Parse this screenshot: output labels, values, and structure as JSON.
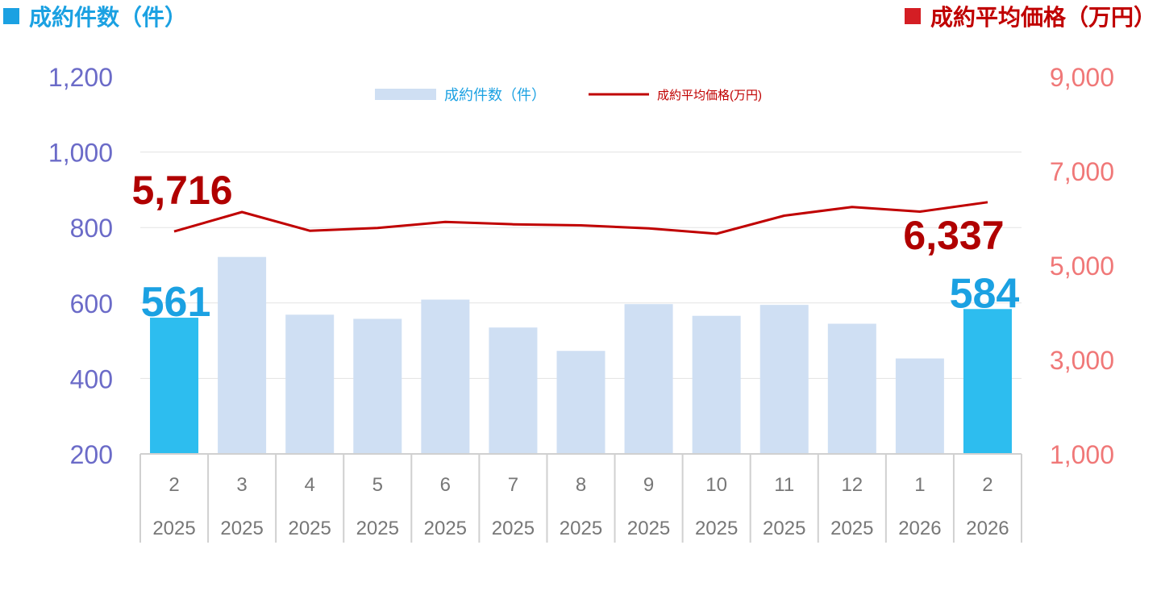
{
  "header": {
    "left_label": "成約件数（件）",
    "right_label": "成約平均価格（万円）"
  },
  "legend": {
    "bar_label": "成約件数（件）",
    "line_label": "成約平均価格(万円)"
  },
  "colors": {
    "bar": "#cfdff3",
    "bar_highlight": "#2dbdef",
    "line": "#c00000",
    "left_axis_text": "#6b6bc8",
    "right_axis_text": "#f07878",
    "grid": "#e3e3e3",
    "category_text": "#777777",
    "header_left": "#1ba1e2",
    "header_right": "#c00000",
    "label_count": "#1ba1e2",
    "label_price": "#b00000"
  },
  "chart_data": {
    "type": "bar",
    "categories": [
      {
        "month": "2",
        "year": "2025"
      },
      {
        "month": "3",
        "year": "2025"
      },
      {
        "month": "4",
        "year": "2025"
      },
      {
        "month": "5",
        "year": "2025"
      },
      {
        "month": "6",
        "year": "2025"
      },
      {
        "month": "7",
        "year": "2025"
      },
      {
        "month": "8",
        "year": "2025"
      },
      {
        "month": "9",
        "year": "2025"
      },
      {
        "month": "10",
        "year": "2025"
      },
      {
        "month": "11",
        "year": "2025"
      },
      {
        "month": "12",
        "year": "2025"
      },
      {
        "month": "1",
        "year": "2026"
      },
      {
        "month": "2",
        "year": "2026"
      }
    ],
    "series": [
      {
        "name": "成約件数（件）",
        "type": "bar",
        "axis": "left",
        "values": [
          561,
          722,
          569,
          558,
          609,
          535,
          473,
          597,
          566,
          595,
          545,
          453,
          584
        ],
        "highlight": [
          0,
          12
        ]
      },
      {
        "name": "成約平均価格(万円)",
        "type": "line",
        "axis": "right",
        "values": [
          5716,
          6128,
          5732,
          5790,
          5918,
          5868,
          5847,
          5781,
          5668,
          6051,
          6236,
          6137,
          6337
        ]
      }
    ],
    "y_left": {
      "ylim": [
        200,
        1200
      ],
      "ticks": [
        200,
        400,
        600,
        800,
        1000,
        1200
      ],
      "tick_labels": [
        "200",
        "400",
        "600",
        "800",
        "1,000",
        "1,200"
      ]
    },
    "y_right": {
      "ylim": [
        1000,
        9000
      ],
      "ticks": [
        1000,
        3000,
        5000,
        7000,
        9000
      ],
      "tick_labels": [
        "1,000",
        "3,000",
        "5,000",
        "7,000",
        "9,000"
      ]
    },
    "data_labels": [
      {
        "series": 0,
        "index": 0,
        "text": "561"
      },
      {
        "series": 0,
        "index": 12,
        "text": "584"
      },
      {
        "series": 1,
        "index": 0,
        "text": "5,716"
      },
      {
        "series": 1,
        "index": 12,
        "text": "6,337"
      }
    ],
    "grid": true,
    "legend_position": "top-center"
  }
}
